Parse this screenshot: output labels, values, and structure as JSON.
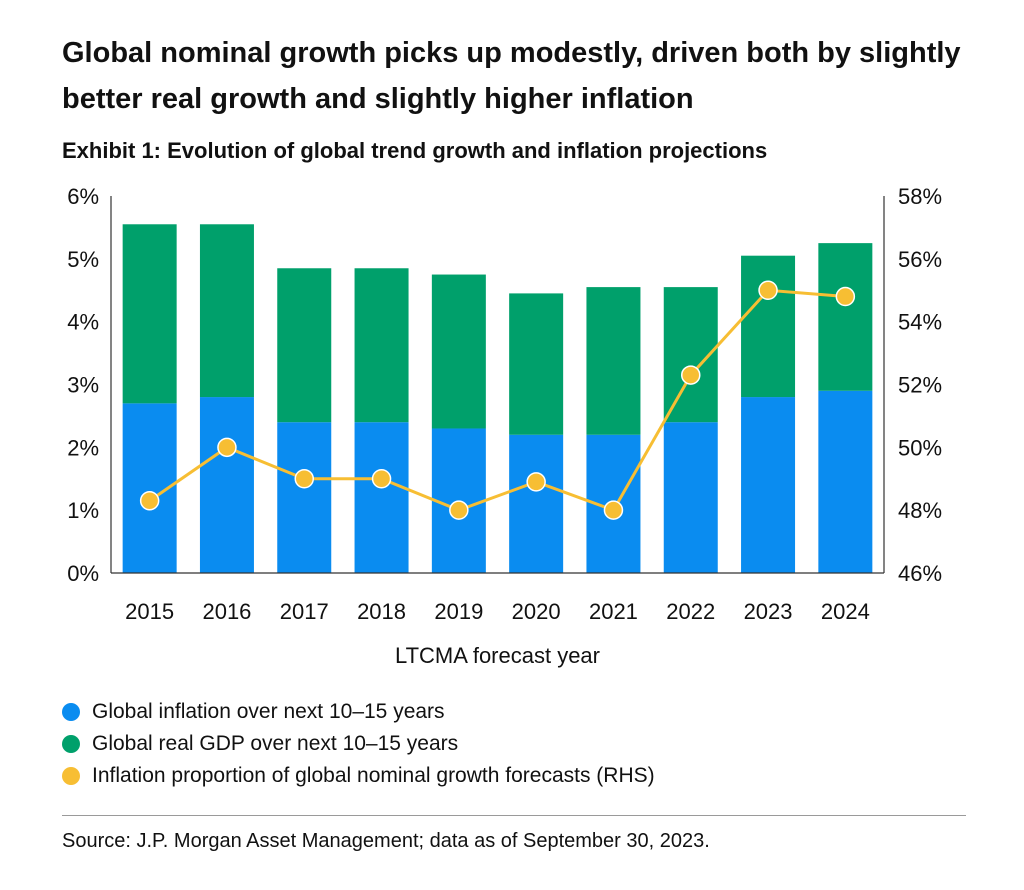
{
  "title": "Global nominal growth picks up modestly, driven both by slightly better real growth and slightly higher inflation",
  "subtitle": "Exhibit 1: Evolution of global trend growth and inflation projections",
  "source": "Source: J.P. Morgan Asset Management; data as of September 30, 2023.",
  "colors": {
    "inflation": "#0a8cf0",
    "real_gdp": "#00a06b",
    "proportion": "#f7be33"
  },
  "legend": [
    {
      "label": "Global inflation over next 10–15 years",
      "color": "#0a8cf0"
    },
    {
      "label": "Global real GDP over next 10–15 years",
      "color": "#00a06b"
    },
    {
      "label": "Inflation proportion of global nominal growth forecasts (RHS)",
      "color": "#f7be33"
    }
  ],
  "chart_data": {
    "type": "bar",
    "stacked": true,
    "categories": [
      "2015",
      "2016",
      "2017",
      "2018",
      "2019",
      "2020",
      "2021",
      "2022",
      "2023",
      "2024"
    ],
    "xlabel": "LTCMA forecast year",
    "ylim": [
      0,
      6
    ],
    "y_ticks": [
      "0%",
      "1%",
      "2%",
      "3%",
      "4%",
      "5%",
      "6%"
    ],
    "y2lim": [
      46,
      58
    ],
    "y2_ticks": [
      "46%",
      "48%",
      "50%",
      "52%",
      "54%",
      "56%",
      "58%"
    ],
    "series": [
      {
        "name": "Global inflation over next 10–15 years",
        "type": "bar",
        "axis": "left",
        "values": [
          2.7,
          2.8,
          2.4,
          2.4,
          2.3,
          2.2,
          2.2,
          2.4,
          2.8,
          2.9
        ]
      },
      {
        "name": "Global real GDP over next 10–15 years",
        "type": "bar",
        "axis": "left",
        "values": [
          2.85,
          2.75,
          2.45,
          2.45,
          2.45,
          2.25,
          2.35,
          2.15,
          2.25,
          2.35
        ]
      },
      {
        "name": "Inflation proportion of global nominal growth forecasts (RHS)",
        "type": "line",
        "axis": "right",
        "values": [
          48.3,
          50.0,
          49.0,
          49.0,
          48.0,
          48.9,
          48.0,
          52.3,
          55.0,
          54.8
        ]
      }
    ],
    "grid": false,
    "legend_position": "bottom"
  }
}
